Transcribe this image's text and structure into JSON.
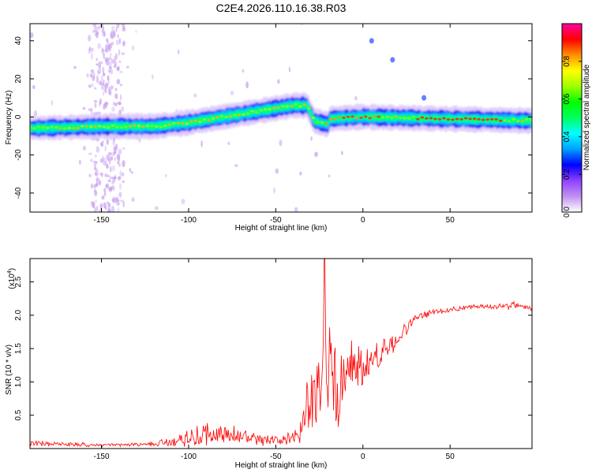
{
  "title": "C2E4.2026.110.16.38.R03",
  "chart_data": [
    {
      "type": "heatmap",
      "xlabel": "Height of straight line (km)",
      "ylabel": "Frequency (Hz)",
      "xlim": [
        -191,
        97
      ],
      "ylim": [
        -50,
        49
      ],
      "xticks": [
        -150,
        -100,
        -50,
        0,
        50
      ],
      "xtick_labels": [
        "-150",
        "-100",
        "-50",
        "0",
        "50"
      ],
      "yticks": [
        40,
        20,
        0,
        -20,
        -40
      ],
      "ytick_labels": [
        "40",
        "20",
        "0",
        "-20",
        "-40"
      ],
      "colorbar": {
        "label": "Normalized spectral amplitude",
        "range": [
          0,
          1
        ],
        "ticks": [
          0.0,
          0.2,
          0.4,
          0.6,
          0.8
        ],
        "tick_labels": [
          "0.0",
          "0.2",
          "0.4",
          "0.6",
          "0.8"
        ],
        "colors": [
          "#ffffff",
          "#c090f0",
          "#9040ff",
          "#0000ff",
          "#00a0ff",
          "#00ffff",
          "#00ff60",
          "#00ff00",
          "#a0ff00",
          "#ffff00",
          "#ff9000",
          "#ff0000",
          "#ff00a0"
        ]
      },
      "ridge": [
        {
          "x": -191,
          "f": -6
        },
        {
          "x": -150,
          "f": -5
        },
        {
          "x": -120,
          "f": -5
        },
        {
          "x": -100,
          "f": -3
        },
        {
          "x": -80,
          "f": 0
        },
        {
          "x": -60,
          "f": 3
        },
        {
          "x": -40,
          "f": 6
        },
        {
          "x": -32,
          "f": 6
        },
        {
          "x": -28,
          "f": -2
        },
        {
          "x": -20,
          "f": -4
        },
        {
          "x": -19,
          "f": -1
        },
        {
          "x": 0,
          "f": 0
        },
        {
          "x": 97,
          "f": -2
        }
      ],
      "features": [
        {
          "x": 35,
          "f": 10
        },
        {
          "x": 17,
          "f": 30
        },
        {
          "x": 5,
          "f": 40
        }
      ]
    },
    {
      "type": "line",
      "xlabel": "Height of straight line (km)",
      "ylabel": "SNR (10 * v/v)",
      "scale_label": "(x10",
      "scale_exponent": "4",
      "xlim": [
        -191,
        97
      ],
      "ylim": [
        0,
        2.85
      ],
      "xticks": [
        -150,
        -100,
        -50,
        0,
        50
      ],
      "xtick_labels": [
        "-150",
        "-100",
        "-50",
        "0",
        "50"
      ],
      "yticks": [
        0.5,
        1.0,
        1.5,
        2.0,
        2.5
      ],
      "ytick_labels": [
        "0.5",
        "1.0",
        "1.5",
        "2.0",
        "2.5"
      ],
      "color": "#ff0000",
      "series": [
        {
          "name": "SNR",
          "envelope": [
            {
              "x": -191,
              "base": 0.08,
              "amp": 0.05
            },
            {
              "x": -170,
              "base": 0.06,
              "amp": 0.04
            },
            {
              "x": -150,
              "base": 0.05,
              "amp": 0.03
            },
            {
              "x": -125,
              "base": 0.06,
              "amp": 0.03
            },
            {
              "x": -110,
              "base": 0.1,
              "amp": 0.08
            },
            {
              "x": -90,
              "base": 0.22,
              "amp": 0.22
            },
            {
              "x": -75,
              "base": 0.2,
              "amp": 0.2
            },
            {
              "x": -60,
              "base": 0.12,
              "amp": 0.1
            },
            {
              "x": -45,
              "base": 0.12,
              "amp": 0.08
            },
            {
              "x": -38,
              "base": 0.18,
              "amp": 0.15
            },
            {
              "x": -32,
              "base": 0.6,
              "amp": 0.5
            },
            {
              "x": -26,
              "base": 0.9,
              "amp": 0.9
            },
            {
              "x": -22,
              "base": 1.3,
              "amp": 1.4
            },
            {
              "x": -15,
              "base": 0.9,
              "amp": 0.8
            },
            {
              "x": -8,
              "base": 1.2,
              "amp": 0.5
            },
            {
              "x": 0,
              "base": 1.25,
              "amp": 0.35
            },
            {
              "x": 10,
              "base": 1.4,
              "amp": 0.3
            },
            {
              "x": 20,
              "base": 1.65,
              "amp": 0.15
            },
            {
              "x": 30,
              "base": 1.95,
              "amp": 0.08
            },
            {
              "x": 40,
              "base": 2.05,
              "amp": 0.05
            },
            {
              "x": 60,
              "base": 2.12,
              "amp": 0.04
            },
            {
              "x": 90,
              "base": 2.15,
              "amp": 0.06
            },
            {
              "x": 97,
              "base": 2.1,
              "amp": 0.05
            }
          ]
        }
      ]
    }
  ]
}
